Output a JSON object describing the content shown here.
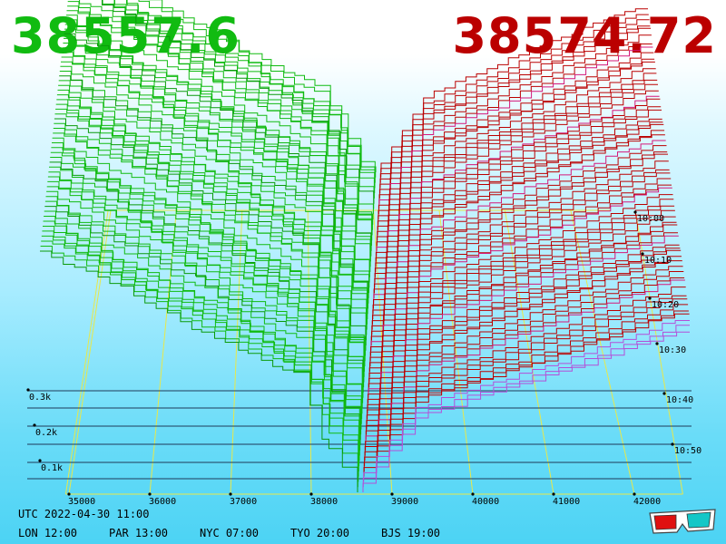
{
  "prices": {
    "bid": "38557.6",
    "ask": "38574.72"
  },
  "colors": {
    "bid": "#11bb11",
    "ask": "#bb0000",
    "floor_grid": "#e8e84a",
    "depth_rule": "#1f3a5a"
  },
  "footer": {
    "utc": "UTC 2022-04-30 11:00",
    "cities": [
      {
        "code": "LON",
        "time": "12:00",
        "label": "LON 12:00"
      },
      {
        "code": "PAR",
        "time": "13:00",
        "label": "PAR 13:00"
      },
      {
        "code": "NYC",
        "time": "07:00",
        "label": "NYC 07:00"
      },
      {
        "code": "TYO",
        "time": "20:00",
        "label": "TYO 20:00"
      },
      {
        "code": "BJS",
        "time": "19:00",
        "label": "BJS 19:00"
      }
    ]
  },
  "icons": {
    "corner": "3d-glasses-icon"
  },
  "chart_data": {
    "type": "area",
    "price_axis": {
      "ticks": [
        35000,
        36000,
        37000,
        38000,
        39000,
        40000,
        41000,
        42000
      ],
      "labels": [
        "35000",
        "36000",
        "37000",
        "38000",
        "39000",
        "40000",
        "41000",
        "42000"
      ]
    },
    "depth_axis": {
      "ticks": [
        100,
        200,
        300
      ],
      "labels": [
        "0.1k",
        "0.2k",
        "0.3k"
      ]
    },
    "time_axis": {
      "ticks": [
        "10:00",
        "10:10",
        "10:20",
        "10:30",
        "10:40",
        "10:50"
      ],
      "labels": [
        "10:00",
        "10:10",
        "10:20",
        "10:30",
        "10:40",
        "10:50"
      ]
    },
    "series": [
      {
        "side": "bid",
        "start_price": 38557.6
      },
      {
        "side": "ask",
        "start_price": 38574.72
      }
    ]
  }
}
